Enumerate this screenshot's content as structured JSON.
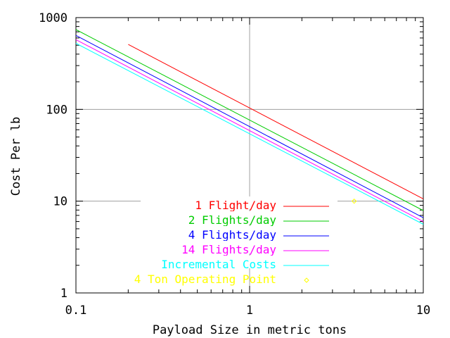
{
  "chart_data": {
    "type": "line",
    "xlabel": "Payload Size in metric tons",
    "ylabel": "Cost Per lb",
    "x_scale": "log",
    "y_scale": "log",
    "xlim": [
      0.1,
      10
    ],
    "ylim": [
      1,
      1000
    ],
    "x_ticks": [
      {
        "value": 0.1,
        "label": "0.1"
      },
      {
        "value": 1,
        "label": "1"
      },
      {
        "value": 10,
        "label": "10"
      }
    ],
    "y_ticks": [
      {
        "value": 1,
        "label": "1"
      },
      {
        "value": 10,
        "label": "10"
      },
      {
        "value": 100,
        "label": "100"
      },
      {
        "value": 1000,
        "label": "1000"
      }
    ],
    "grid": "major",
    "legend_position": "bottom-left",
    "series": [
      {
        "name": "1 Flight/day",
        "color": "#ff0000",
        "x": [
          0.2,
          10
        ],
        "y": [
          510,
          10.6
        ]
      },
      {
        "name": "2 Flights/day",
        "color": "#00cc00",
        "x": [
          0.1,
          10
        ],
        "y": [
          740,
          7.9
        ]
      },
      {
        "name": "4 Flights/day",
        "color": "#0000ff",
        "x": [
          0.1,
          10
        ],
        "y": [
          640,
          6.6
        ]
      },
      {
        "name": "14 Flights/day",
        "color": "#ff00ff",
        "x": [
          0.1,
          10
        ],
        "y": [
          575,
          6.0
        ]
      },
      {
        "name": "Incremental Costs",
        "color": "#00ffff",
        "x": [
          0.1,
          10
        ],
        "y": [
          525,
          5.6
        ]
      }
    ],
    "points": [
      {
        "name": "4 Ton Operating Point",
        "color": "#ffff00",
        "marker": "diamond",
        "x": [
          4
        ],
        "y": [
          10
        ]
      }
    ]
  }
}
